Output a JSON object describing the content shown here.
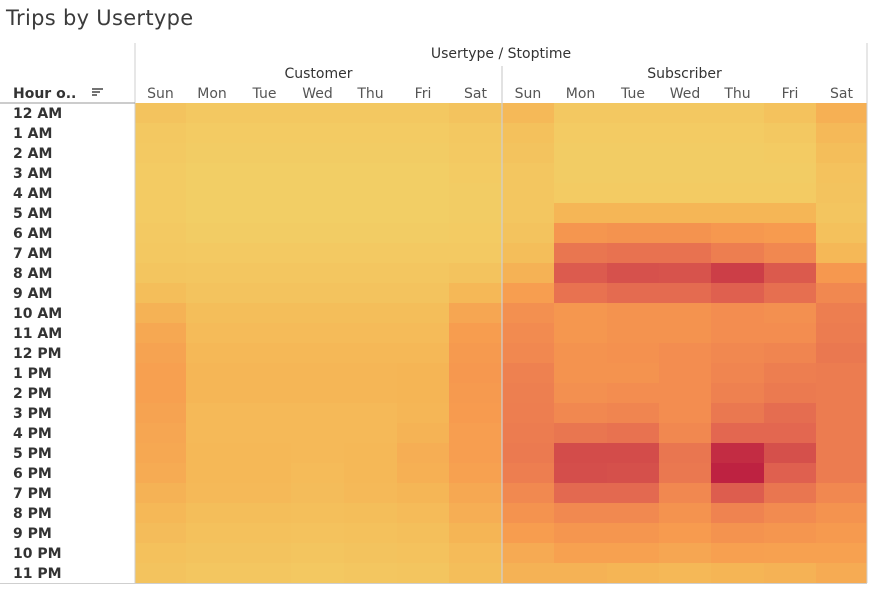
{
  "title": "Trips by Usertype",
  "chart_data": {
    "type": "heatmap",
    "title": "Trips by Usertype",
    "column_header": "Usertype / Stoptime",
    "row_header": "Hour o..",
    "groups": [
      {
        "name": "Customer",
        "days": [
          "Sun",
          "Mon",
          "Tue",
          "Wed",
          "Thu",
          "Fri",
          "Sat"
        ]
      },
      {
        "name": "Subscriber",
        "days": [
          "Sun",
          "Mon",
          "Tue",
          "Wed",
          "Thu",
          "Fri",
          "Sat"
        ]
      }
    ],
    "rows": [
      "12 AM",
      "1 AM",
      "2 AM",
      "3 AM",
      "4 AM",
      "5 AM",
      "6 AM",
      "7 AM",
      "8 AM",
      "9 AM",
      "10 AM",
      "11 AM",
      "12 PM",
      "1 PM",
      "2 PM",
      "3 PM",
      "4 PM",
      "5 PM",
      "6 PM",
      "7 PM",
      "8 PM",
      "9 PM",
      "10 PM",
      "11 PM"
    ],
    "value_scale": "relative intensity 0-100",
    "color_scale": [
      "#f2cf66",
      "#f5b756",
      "#f79c4f",
      "#f08550",
      "#e26650",
      "#d24a4a",
      "#bd1f40"
    ],
    "values": [
      [
        8,
        5,
        5,
        5,
        5,
        5,
        8,
        15,
        5,
        5,
        5,
        5,
        9,
        21
      ],
      [
        5,
        3,
        3,
        3,
        3,
        3,
        5,
        10,
        3,
        3,
        3,
        3,
        5,
        15
      ],
      [
        4,
        2,
        2,
        2,
        2,
        2,
        4,
        8,
        2,
        2,
        2,
        2,
        3,
        12
      ],
      [
        3,
        1,
        1,
        1,
        1,
        1,
        3,
        6,
        2,
        2,
        2,
        2,
        2,
        9
      ],
      [
        3,
        1,
        1,
        1,
        1,
        1,
        2,
        6,
        3,
        3,
        3,
        3,
        3,
        8
      ],
      [
        3,
        1,
        1,
        1,
        1,
        1,
        2,
        6,
        17,
        17,
        17,
        17,
        17,
        7
      ],
      [
        4,
        2,
        2,
        2,
        2,
        2,
        3,
        8,
        38,
        40,
        40,
        36,
        34,
        10
      ],
      [
        5,
        4,
        4,
        4,
        4,
        4,
        4,
        12,
        58,
        60,
        60,
        54,
        48,
        16
      ],
      [
        7,
        6,
        6,
        6,
        6,
        6,
        8,
        20,
        73,
        79,
        78,
        88,
        74,
        36
      ],
      [
        12,
        8,
        8,
        8,
        8,
        8,
        16,
        32,
        60,
        64,
        64,
        70,
        62,
        48
      ],
      [
        20,
        12,
        12,
        12,
        12,
        12,
        27,
        42,
        37,
        40,
        40,
        44,
        42,
        54
      ],
      [
        26,
        14,
        14,
        14,
        14,
        14,
        33,
        46,
        37,
        40,
        40,
        44,
        44,
        55
      ],
      [
        29,
        16,
        16,
        16,
        16,
        16,
        35,
        48,
        40,
        41,
        44,
        48,
        50,
        57
      ],
      [
        31,
        17,
        17,
        17,
        17,
        18,
        36,
        52,
        40,
        40,
        44,
        50,
        54,
        55
      ],
      [
        31,
        17,
        17,
        17,
        17,
        18,
        35,
        53,
        42,
        44,
        44,
        52,
        56,
        55
      ],
      [
        29,
        15,
        15,
        15,
        15,
        17,
        34,
        54,
        48,
        50,
        44,
        57,
        63,
        55
      ],
      [
        27,
        15,
        15,
        15,
        15,
        19,
        32,
        55,
        58,
        60,
        48,
        66,
        66,
        55
      ],
      [
        26,
        16,
        16,
        15,
        16,
        22,
        32,
        56,
        82,
        82,
        58,
        95,
        80,
        55
      ],
      [
        24,
        16,
        16,
        14,
        16,
        21,
        30,
        54,
        81,
        80,
        57,
        99,
        70,
        55
      ],
      [
        20,
        15,
        15,
        13,
        15,
        17,
        26,
        47,
        65,
        65,
        48,
        72,
        58,
        48
      ],
      [
        16,
        12,
        12,
        11,
        12,
        14,
        22,
        40,
        47,
        47,
        40,
        51,
        46,
        40
      ],
      [
        13,
        10,
        10,
        9,
        10,
        11,
        18,
        33,
        38,
        38,
        34,
        40,
        38,
        35
      ],
      [
        10,
        8,
        8,
        7,
        8,
        9,
        14,
        25,
        30,
        30,
        27,
        31,
        30,
        30
      ],
      [
        8,
        6,
        6,
        5,
        6,
        7,
        12,
        20,
        20,
        18,
        16,
        18,
        20,
        24
      ]
    ]
  }
}
